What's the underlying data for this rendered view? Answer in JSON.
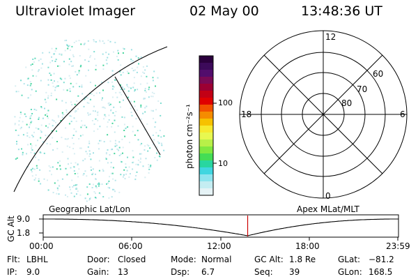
{
  "header": {
    "title": "Ultraviolet Imager",
    "date": "02 May 00",
    "time": "13:48:36 UT"
  },
  "colorbar": {
    "unit_label": "photon cm⁻²s⁻¹",
    "ticks": [
      "100",
      "10"
    ],
    "colors": [
      "#2b003d",
      "#3c0a5a",
      "#520d6c",
      "#7a0a55",
      "#9c0033",
      "#c20015",
      "#e00000",
      "#f25200",
      "#f58c00",
      "#f6c100",
      "#f6ea30",
      "#e8f850",
      "#b8f048",
      "#80e840",
      "#44dd55",
      "#28d6a0",
      "#40d6e0",
      "#8ee4ee",
      "#c4edf2",
      "#e6f3f6"
    ]
  },
  "polar": {
    "labels": {
      "top": "12",
      "left": "18",
      "right": "6",
      "bottom": "0"
    },
    "lat_labels": [
      "60",
      "70",
      "80"
    ]
  },
  "timeline": {
    "left_label": "Geographic Lat/Lon",
    "right_label": "Apex MLat/MLT",
    "y_axis_label": "GC Alt",
    "y_ticks": [
      "9.0",
      "1.8"
    ],
    "x_ticks": [
      "00:00",
      "06:00",
      "12:00",
      "18:00",
      "23:59"
    ],
    "marker_time": "13:48",
    "marker_color": "#cc0000"
  },
  "info": [
    [
      {
        "k": "Flt:",
        "v": "LBHL"
      },
      {
        "k": "Door:",
        "v": "Closed"
      },
      {
        "k": "Mode:",
        "v": "Normal"
      },
      {
        "k": "GC Alt:",
        "v": "1.8 Re"
      },
      {
        "k": "GLat:",
        "v": "−81.2"
      }
    ],
    [
      {
        "k": "IP:",
        "v": "9.0"
      },
      {
        "k": "Gain:",
        "v": "13"
      },
      {
        "k": "Dsp:",
        "v": "6.7"
      },
      {
        "k": "Seq:",
        "v": "39"
      },
      {
        "k": "GLon:",
        "v": "168.5"
      }
    ]
  ]
}
